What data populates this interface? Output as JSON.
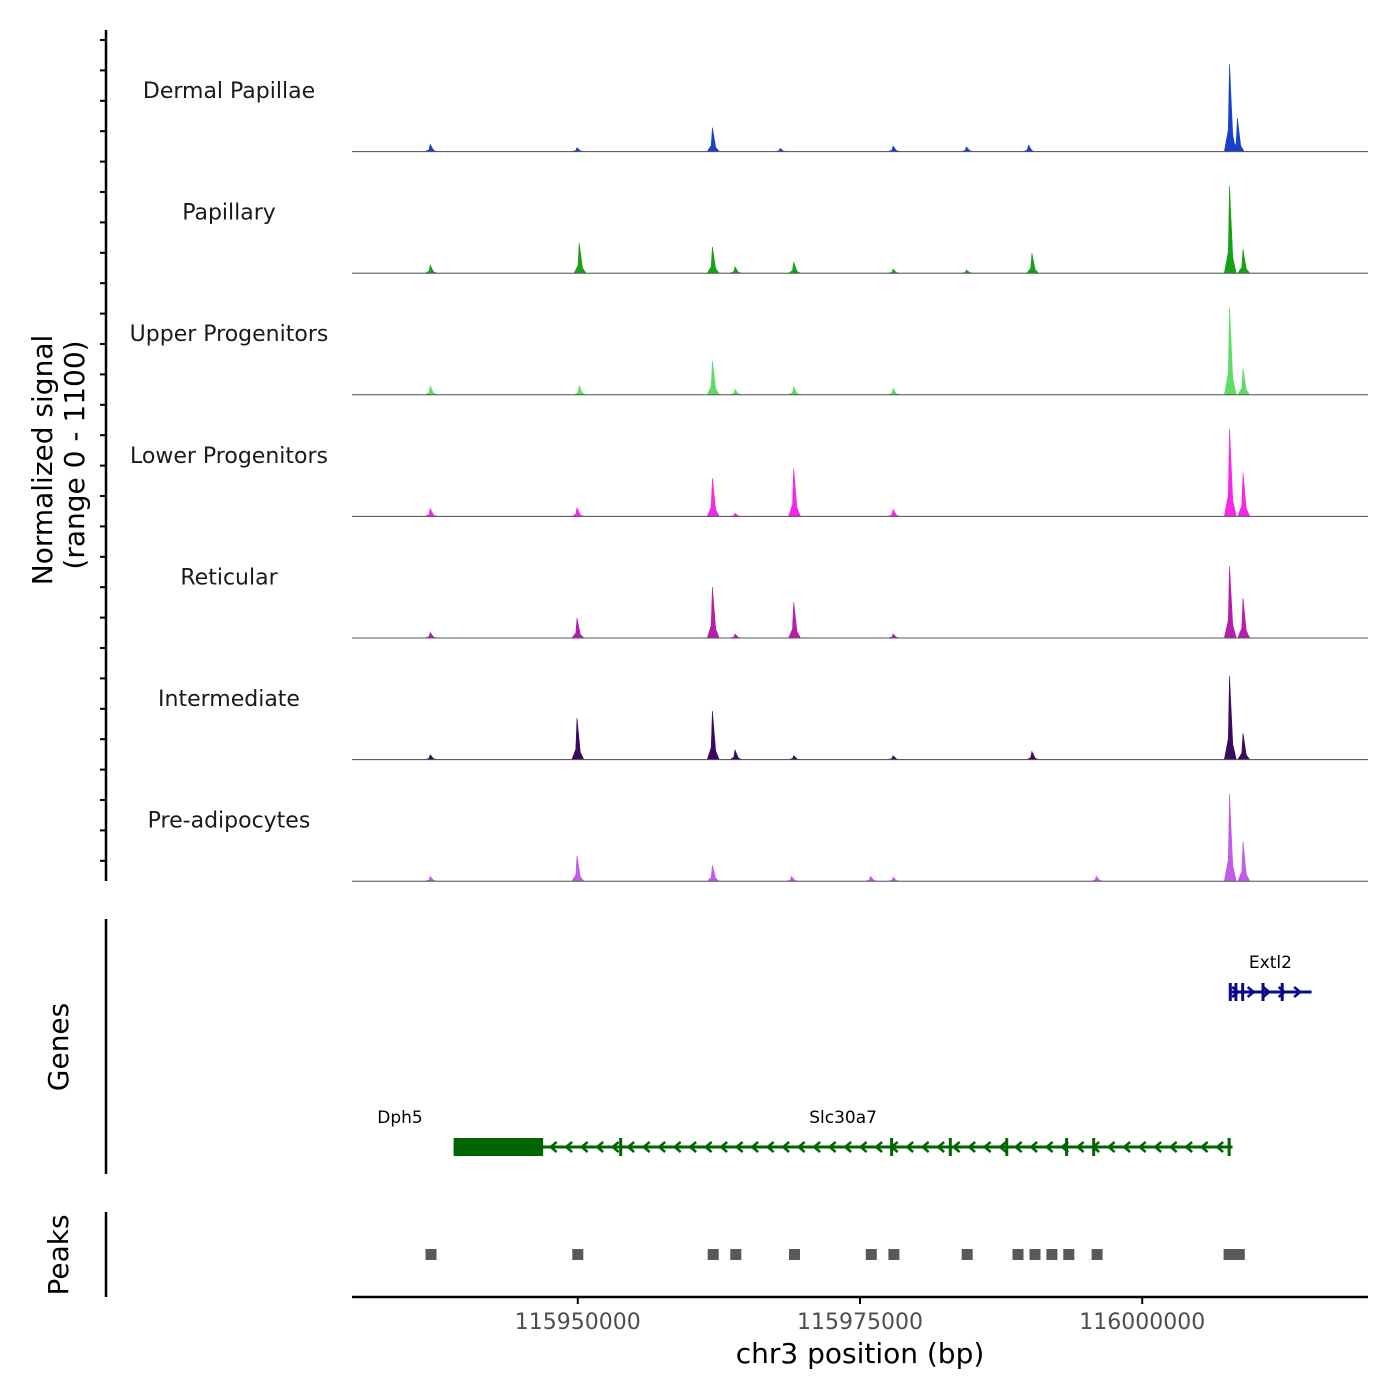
{
  "chart_data": {
    "type": "area",
    "title": "",
    "ylabel_line1": "Normalized signal",
    "ylabel_line2": "(range 0 - 1100)",
    "ylim": [
      0,
      1100
    ],
    "xlabel": "chr3 position (bp)",
    "xlim": [
      115930000,
      116020000
    ],
    "x_ticks": [
      115950000,
      115975000,
      116000000
    ],
    "x_tick_labels": [
      "115950000",
      "115975000",
      "116000000"
    ],
    "series": [
      {
        "name": "Dermal Papillae",
        "color": "#1a3fcc",
        "peaks": [
          [
            115937000,
            90
          ],
          [
            115950000,
            50
          ],
          [
            115962000,
            300
          ],
          [
            115968000,
            40
          ],
          [
            115978000,
            70
          ],
          [
            115984500,
            60
          ],
          [
            115990000,
            80
          ],
          [
            116007800,
            1100
          ],
          [
            116008500,
            420
          ]
        ]
      },
      {
        "name": "Papillary",
        "color": "#18a018",
        "peaks": [
          [
            115937000,
            100
          ],
          [
            115950200,
            380
          ],
          [
            115962000,
            330
          ],
          [
            115964000,
            80
          ],
          [
            115969200,
            140
          ],
          [
            115978000,
            50
          ],
          [
            115984500,
            40
          ],
          [
            115990300,
            250
          ],
          [
            116007800,
            1100
          ],
          [
            116009000,
            300
          ]
        ]
      },
      {
        "name": "Upper Progenitors",
        "color": "#5edc68",
        "peaks": [
          [
            115937000,
            110
          ],
          [
            115950200,
            110
          ],
          [
            115962000,
            430
          ],
          [
            115964000,
            70
          ],
          [
            115969200,
            100
          ],
          [
            115978000,
            80
          ],
          [
            116007800,
            1100
          ],
          [
            116009000,
            330
          ]
        ]
      },
      {
        "name": "Lower Progenitors",
        "color": "#f528e8",
        "peaks": [
          [
            115937000,
            100
          ],
          [
            115950000,
            110
          ],
          [
            115962000,
            480
          ],
          [
            115964000,
            40
          ],
          [
            115969200,
            600
          ],
          [
            115978000,
            90
          ],
          [
            116007800,
            1100
          ],
          [
            116009000,
            550
          ]
        ]
      },
      {
        "name": "Reticular",
        "color": "#b81cae",
        "peaks": [
          [
            115937000,
            70
          ],
          [
            115950000,
            250
          ],
          [
            115962000,
            640
          ],
          [
            115964000,
            50
          ],
          [
            115969200,
            450
          ],
          [
            115978000,
            50
          ],
          [
            116007800,
            900
          ],
          [
            116009000,
            500
          ]
        ]
      },
      {
        "name": "Intermediate",
        "color": "#3a0a5e",
        "peaks": [
          [
            115937000,
            60
          ],
          [
            115950000,
            520
          ],
          [
            115962000,
            610
          ],
          [
            115964000,
            120
          ],
          [
            115969200,
            50
          ],
          [
            115978000,
            50
          ],
          [
            115990300,
            100
          ],
          [
            116007800,
            1050
          ],
          [
            116009000,
            330
          ]
        ]
      },
      {
        "name": "Pre-adipocytes",
        "color": "#c05cec",
        "peaks": [
          [
            115937000,
            60
          ],
          [
            115950000,
            320
          ],
          [
            115962000,
            200
          ],
          [
            115969000,
            60
          ],
          [
            115976000,
            60
          ],
          [
            115978000,
            50
          ],
          [
            115996000,
            60
          ],
          [
            116007800,
            1100
          ],
          [
            116009000,
            500
          ]
        ]
      }
    ]
  },
  "genes_panel": {
    "title": "Genes",
    "genes": [
      {
        "name": "Dph5",
        "start": 115934000,
        "end": 115934500,
        "strand": "+",
        "row": 2,
        "color": "#0a0a8c"
      },
      {
        "name": "Slc30a7",
        "start": 115939000,
        "end": 116008000,
        "strand": "-",
        "row": 2,
        "color": "#006400",
        "thick_start": 115939000,
        "thick_end": 115946800,
        "exons": [
          115946800,
          115953800,
          115977800,
          115983000,
          115988000,
          115993300,
          115995700,
          116007700
        ]
      },
      {
        "name": "Extl2",
        "start": 116007700,
        "end": 116015000,
        "strand": "+",
        "row": 1,
        "color": "#0a0a8c",
        "exons": [
          116007800,
          116008300,
          116008900,
          116010700,
          116012400
        ]
      }
    ]
  },
  "peaks_panel": {
    "title": "Peaks",
    "color": "#595959",
    "positions": [
      115937000,
      115950000,
      115962000,
      115964000,
      115969200,
      115976000,
      115978000,
      115984500,
      115989000,
      115990500,
      115992000,
      115993500,
      115996000,
      116007700,
      116008600
    ]
  }
}
